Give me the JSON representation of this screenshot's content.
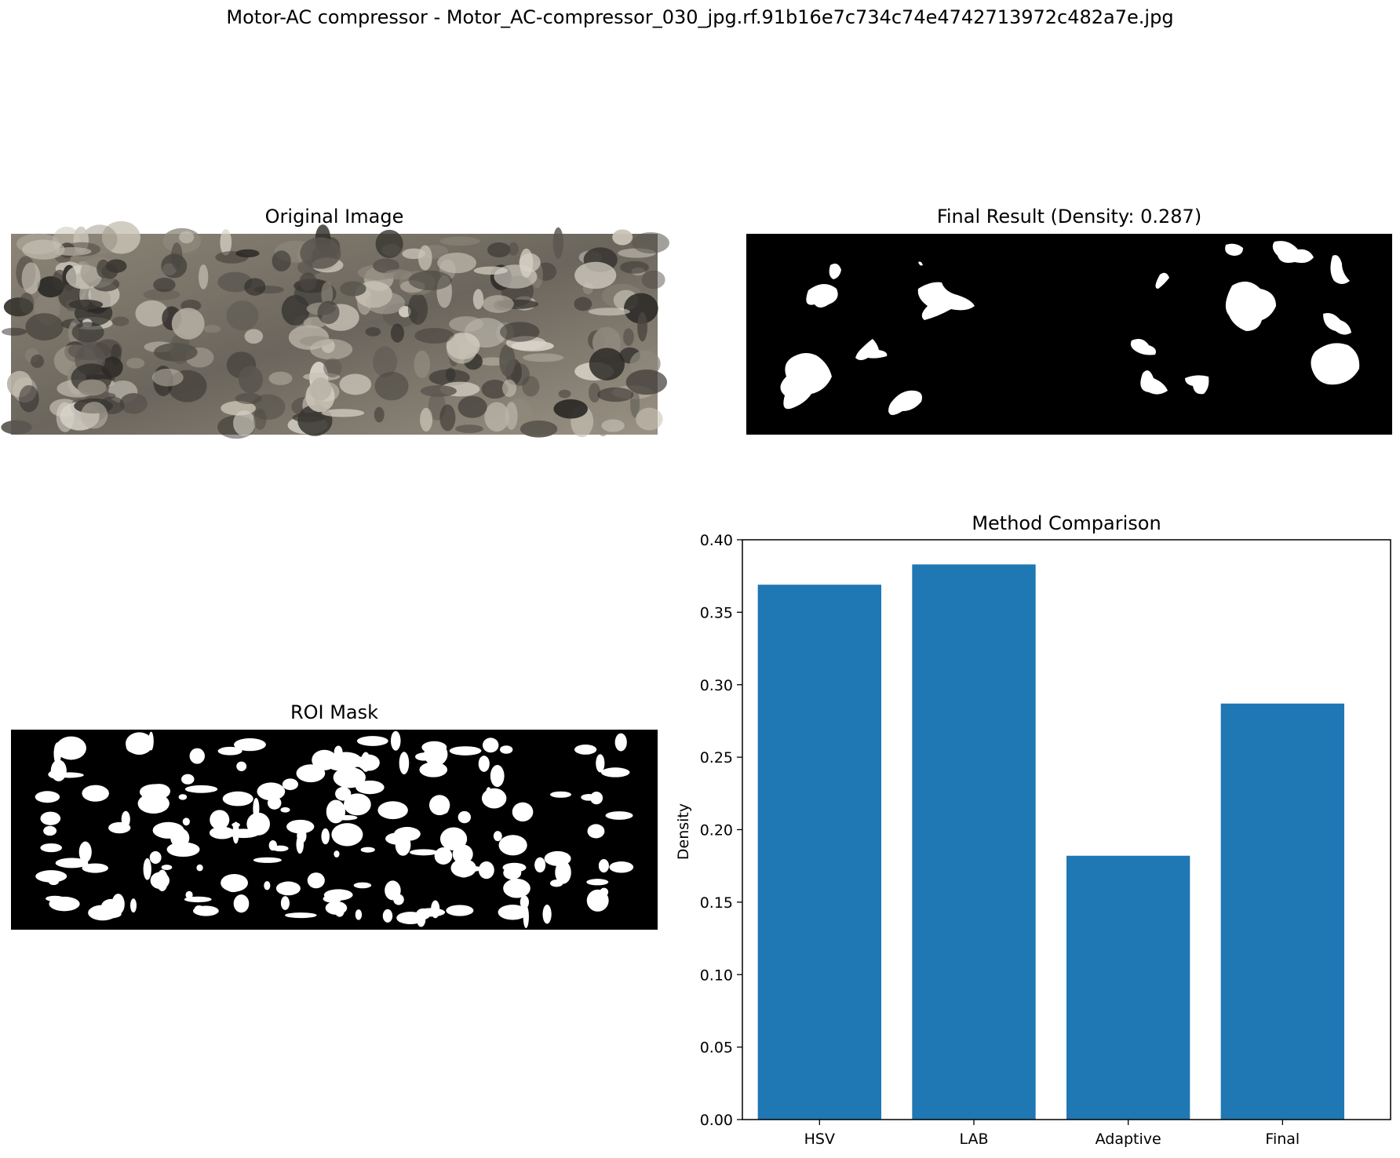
{
  "figure": {
    "suptitle": "Motor-AC compressor - Motor_AC-compressor_030_jpg.rf.91b16e7c734c74e4742713972c482a7e.jpg"
  },
  "panels": {
    "original": {
      "title": "Original Image"
    },
    "final": {
      "title": "Final Result (Density: 0.287)"
    },
    "roi": {
      "title": "ROI Mask"
    }
  },
  "colors": {
    "bar": "#1f77b4",
    "mask_bg": "#000000",
    "mask_fg": "#ffffff"
  },
  "chart_data": {
    "type": "bar",
    "title": "Method Comparison",
    "ylabel": "Density",
    "xlabel": "",
    "categories": [
      "HSV",
      "LAB",
      "Adaptive",
      "Final"
    ],
    "values": [
      0.369,
      0.383,
      0.182,
      0.287
    ],
    "ylim": [
      0,
      0.4
    ],
    "yticks": [
      "0.00",
      "0.05",
      "0.10",
      "0.15",
      "0.20",
      "0.25",
      "0.30",
      "0.35",
      "0.40"
    ],
    "grid": false
  }
}
